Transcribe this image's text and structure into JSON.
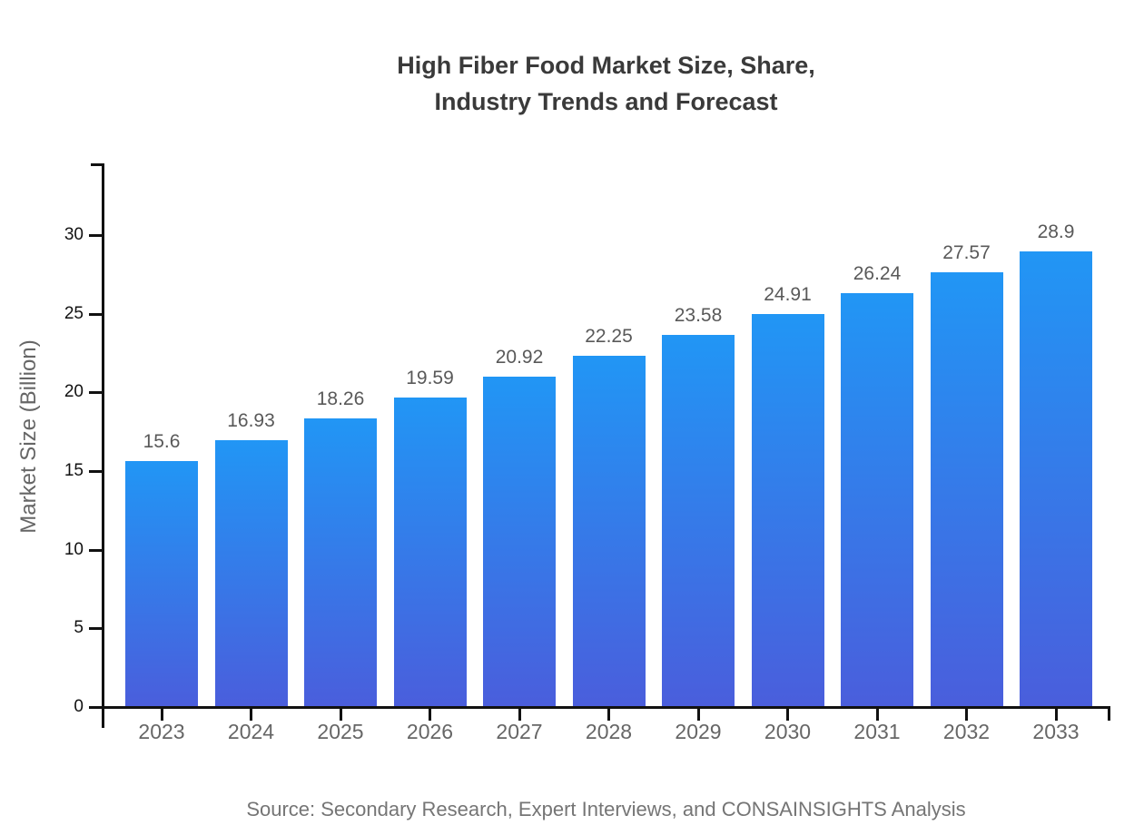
{
  "title": {
    "line1": "High Fiber Food Market Size, Share,",
    "line2": "Industry Trends and Forecast"
  },
  "chart_data": {
    "type": "bar",
    "categories": [
      "2023",
      "2024",
      "2025",
      "2026",
      "2027",
      "2028",
      "2029",
      "2030",
      "2031",
      "2032",
      "2033"
    ],
    "values": [
      15.6,
      16.93,
      18.26,
      19.59,
      20.92,
      22.25,
      23.58,
      24.91,
      26.24,
      27.57,
      28.9
    ],
    "title": "High Fiber Food Market Size, Share, Industry Trends and Forecast",
    "xlabel": "",
    "ylabel": "Market Size (Billion)",
    "ylim": [
      0,
      34.6
    ],
    "yticks": [
      0,
      5,
      10,
      15,
      20,
      25,
      30
    ],
    "grid": false,
    "legend_position": "none",
    "bar_gradient_top": "#2196F5",
    "bar_gradient_bottom": "#4A5EDC"
  },
  "source_note": "Source: Secondary Research, Expert Interviews, and CONSAINSIGHTS Analysis",
  "colors": {
    "title_text": "#3a3a3a",
    "axis": "#111111",
    "y_tick_label": "#111111",
    "x_tick_label": "#666666",
    "value_label": "#595959",
    "source_text": "#757575",
    "background": "#ffffff"
  }
}
